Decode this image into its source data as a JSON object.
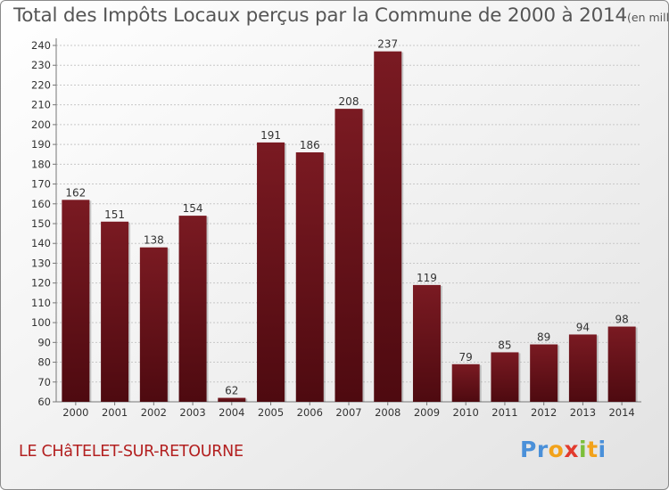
{
  "title": "Total des Impôts Locaux perçus par la Commune de 2000 à 2014",
  "title_unit": "(en milliers d'€)",
  "commune": "LE CHâTELET-SUR-RETOURNE",
  "logo": {
    "letters": [
      "P",
      "r",
      "o",
      "x",
      "i",
      "t",
      "i"
    ],
    "colors": [
      "#4a90d9",
      "#4a90d9",
      "#f2a21a",
      "#e23b2e",
      "#7cbf3a",
      "#f2a21a",
      "#4a90d9"
    ]
  },
  "chart_data": {
    "type": "bar",
    "categories": [
      "2000",
      "2001",
      "2002",
      "2003",
      "2004",
      "2005",
      "2006",
      "2007",
      "2008",
      "2009",
      "2010",
      "2011",
      "2012",
      "2013",
      "2014"
    ],
    "values": [
      162,
      151,
      138,
      154,
      62,
      191,
      186,
      208,
      237,
      119,
      79,
      85,
      89,
      94,
      98
    ],
    "ylim": [
      60,
      240
    ],
    "ytick_step": 10,
    "grid": true,
    "bar_color": "#7a1a22",
    "bar_color_dark": "#4e0a10",
    "text_color": "#333333"
  }
}
